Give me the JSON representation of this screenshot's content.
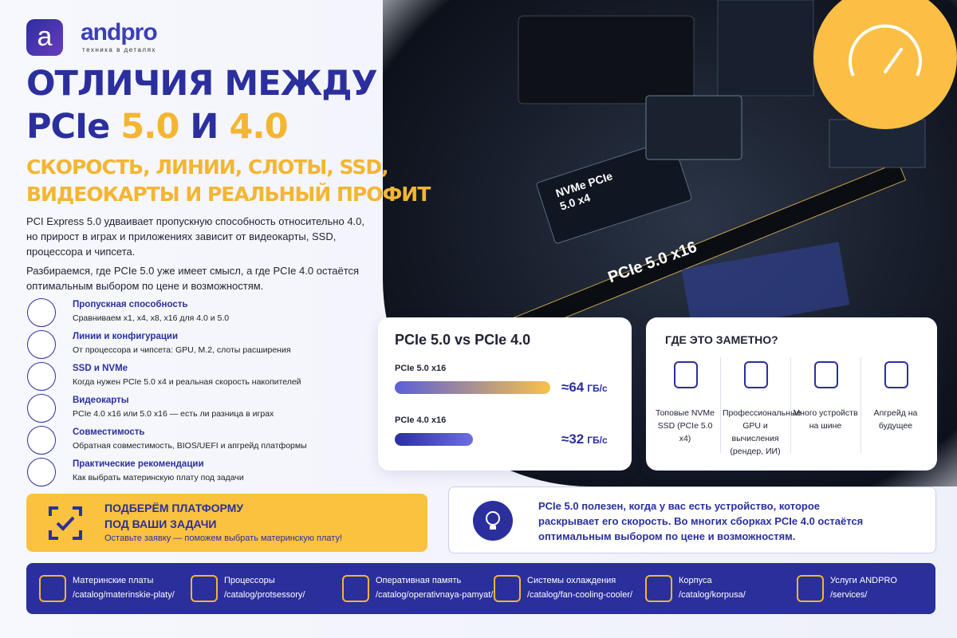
{
  "brand": {
    "logo_letter": "a",
    "name": "andpro",
    "tagline": "техника в деталях"
  },
  "header": {
    "title_line1": "ОТЛИЧИЯ МЕЖДУ",
    "title_pcie": "PCIe",
    "title_v5": "5.0",
    "title_and": "И",
    "title_v4": "4.0",
    "subtitle_line1": "СКОРОСТЬ, ЛИНИИ, СЛОТЫ, SSD,",
    "subtitle_line2": "ВИДЕОКАРТЫ И РЕАЛЬНЫЙ ПРОФИТ"
  },
  "intro": [
    "PCI Express 5.0 удваивает пропускную способность относительно 4.0, но прирост в играх и приложениях зависит от видеокарты, SSD, процессора и чипсета.",
    "Разбираемся, где PCIe 5.0 уже имеет смысл, а где PCIe 4.0 остаётся оптимальным выбором по цене и возможностям."
  ],
  "topics": [
    {
      "title": "Пропускная способность",
      "desc": "Сравниваем x1, x4, x8, x16 для 4.0 и 5.0"
    },
    {
      "title": "Линии и конфигурации",
      "desc": "От процессора и чипсета: GPU, M.2, слоты расширения"
    },
    {
      "title": "SSD и NVMe",
      "desc": "Когда нужен PCIe 5.0 x4 и реальная скорость накопителей"
    },
    {
      "title": "Видеокарты",
      "desc": "PCIe 4.0 x16 или 5.0 x16 — есть ли разница в играх"
    },
    {
      "title": "Совместимость",
      "desc": "Обратная совместимость, BIOS/UEFI и апгрейд платформы"
    },
    {
      "title": "Практические рекомендации",
      "desc": "Как выбрать материнскую плату под задачи"
    }
  ],
  "photo_labels": {
    "nvme": "NVMe PCIe 5.0 x4",
    "slot": "PCIe 5.0 x16"
  },
  "comparison": {
    "title": "PCIe 5.0 vs PCIe 4.0",
    "items": [
      {
        "name": "PCIe 5.0 x16",
        "value": 64,
        "label": "≈64",
        "unit": "ГБ/с"
      },
      {
        "name": "PCIe 4.0 x16",
        "value": 32,
        "label": "≈32",
        "unit": "ГБ/с"
      }
    ]
  },
  "where": {
    "title": "ГДЕ ЭТО ЗАМЕТНО?",
    "items": [
      "Топовые NVMe SSD (PCIe 5.0 x4)",
      "Профессиональные GPU и вычисления (рендер, ИИ)",
      "Много устройств на шине",
      "Апгрейд на будущее"
    ]
  },
  "cta": {
    "title_line1": "ПОДБЕРЁМ ПЛАТФОРМУ",
    "title_line2": "ПОД ВАШИ ЗАДАЧИ",
    "text": "Оставьте заявку — поможем выбрать материнскую плату!"
  },
  "tip": "PCIe 5.0 полезен, когда у вас есть устройство, которое раскрывает его скорость. Во многих сборках PCIe 4.0 остаётся оптимальным выбором по цене и возможностям.",
  "footer": [
    {
      "name": "Материнские платы",
      "url": "/catalog/materinskie-platy/"
    },
    {
      "name": "Процессоры",
      "url": "/catalog/protsessory/"
    },
    {
      "name": "Оперативная память",
      "url": "/catalog/operativnaya-pamyat/"
    },
    {
      "name": "Системы охлаждения",
      "url": "/catalog/fan-cooling-cooler/"
    },
    {
      "name": "Корпуса",
      "url": "/catalog/korpusa/"
    },
    {
      "name": "Услуги ANDPRO",
      "url": "/services/"
    }
  ]
}
